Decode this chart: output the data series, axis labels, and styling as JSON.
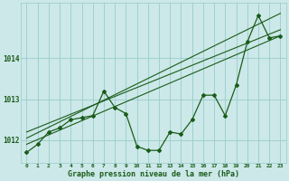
{
  "xlabel": "Graphe pression niveau de la mer (hPa)",
  "background_color": "#cce8e8",
  "grid_color": "#99cccc",
  "line_color": "#1a5c1a",
  "hours": [
    0,
    1,
    2,
    3,
    4,
    5,
    6,
    7,
    8,
    9,
    10,
    11,
    12,
    13,
    14,
    15,
    16,
    17,
    18,
    19,
    20,
    21,
    22,
    23
  ],
  "pressure": [
    1011.7,
    1011.9,
    1012.2,
    1012.3,
    1012.5,
    1012.55,
    1012.6,
    1013.2,
    1012.8,
    1012.65,
    1011.85,
    1011.75,
    1011.75,
    1012.2,
    1012.15,
    1012.5,
    1013.1,
    1013.1,
    1012.6,
    1013.35,
    1014.4,
    1015.05,
    1014.5,
    1014.55
  ],
  "trend_line1_y": [
    1012.05,
    1015.1
  ],
  "trend_line2_y": [
    1012.2,
    1014.7
  ],
  "trend_line3_y": [
    1011.9,
    1014.55
  ],
  "ylim_min": 1011.45,
  "ylim_max": 1015.35,
  "yticks": [
    1012,
    1013,
    1014
  ],
  "xlim_min": -0.5,
  "xlim_max": 23.5
}
